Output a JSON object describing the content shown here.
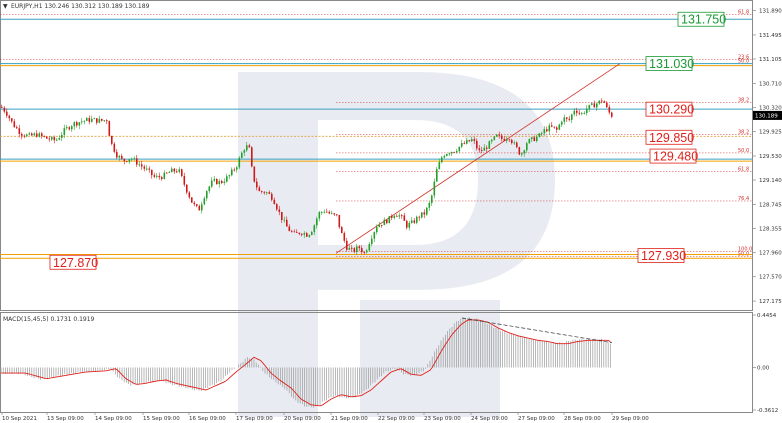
{
  "chart_data": [
    {
      "type": "candlestick",
      "header": "EURJPY,H1  130.246 130.312 130.189 130.189",
      "symbol": "EURJPY",
      "timeframe": "H1",
      "ohlc_last": {
        "open": 130.246,
        "high": 130.312,
        "low": 130.189,
        "close": 130.189
      },
      "current_price": "130.189",
      "ylim": [
        127.03,
        132.03
      ],
      "y_ticks": [
        "131.890",
        "131.495",
        "131.105",
        "130.710",
        "130.320",
        "129.925",
        "129.530",
        "129.140",
        "128.745",
        "128.355",
        "127.960",
        "127.570",
        "127.175"
      ],
      "x_ticks": [
        "10 Sep 2021",
        "13 Sep 09:00",
        "14 Sep 09:00",
        "15 Sep 09:00",
        "16 Sep 09:00",
        "17 Sep 09:00",
        "20 Sep 09:00",
        "21 Sep 09:00",
        "22 Sep 09:00",
        "23 Sep 09:00",
        "24 Sep 09:00",
        "27 Sep 09:00",
        "28 Sep 09:00",
        "29 Sep 09:00"
      ],
      "path_points": [
        [
          0,
          130.33
        ],
        [
          5,
          130.25
        ],
        [
          12,
          130.05
        ],
        [
          20,
          129.9
        ],
        [
          28,
          129.85
        ],
        [
          36,
          129.88
        ],
        [
          45,
          129.82
        ],
        [
          55,
          129.78
        ],
        [
          64,
          129.95
        ],
        [
          72,
          130.05
        ],
        [
          82,
          130.1
        ],
        [
          90,
          130.12
        ],
        [
          100,
          130.1
        ],
        [
          106,
          130.12
        ],
        [
          110,
          129.75
        ],
        [
          116,
          129.55
        ],
        [
          122,
          129.45
        ],
        [
          130,
          129.5
        ],
        [
          138,
          129.4
        ],
        [
          146,
          129.3
        ],
        [
          154,
          129.18
        ],
        [
          162,
          129.2
        ],
        [
          170,
          129.28
        ],
        [
          178,
          129.3
        ],
        [
          184,
          129.05
        ],
        [
          192,
          128.75
        ],
        [
          198,
          128.65
        ],
        [
          205,
          128.95
        ],
        [
          212,
          129.12
        ],
        [
          220,
          129.1
        ],
        [
          228,
          129.2
        ],
        [
          236,
          129.38
        ],
        [
          243,
          129.65
        ],
        [
          248,
          129.7
        ],
        [
          252,
          129.2
        ],
        [
          258,
          128.95
        ],
        [
          265,
          128.95
        ],
        [
          272,
          128.85
        ],
        [
          280,
          128.55
        ],
        [
          287,
          128.35
        ],
        [
          294,
          128.25
        ],
        [
          300,
          128.3
        ],
        [
          307,
          128.25
        ],
        [
          312,
          128.35
        ],
        [
          318,
          128.6
        ],
        [
          324,
          128.65
        ],
        [
          330,
          128.58
        ],
        [
          336,
          128.55
        ],
        [
          340,
          128.3
        ],
        [
          346,
          128.05
        ],
        [
          352,
          127.98
        ],
        [
          358,
          128.05
        ],
        [
          364,
          127.95
        ],
        [
          370,
          128.2
        ],
        [
          376,
          128.4
        ],
        [
          382,
          128.45
        ],
        [
          388,
          128.5
        ],
        [
          394,
          128.6
        ],
        [
          400,
          128.55
        ],
        [
          406,
          128.4
        ],
        [
          412,
          128.45
        ],
        [
          418,
          128.55
        ],
        [
          424,
          128.6
        ],
        [
          430,
          128.8
        ],
        [
          436,
          129.3
        ],
        [
          442,
          129.55
        ],
        [
          448,
          129.6
        ],
        [
          454,
          129.62
        ],
        [
          460,
          129.7
        ],
        [
          466,
          129.75
        ],
        [
          472,
          129.8
        ],
        [
          478,
          129.6
        ],
        [
          484,
          129.65
        ],
        [
          490,
          129.75
        ],
        [
          496,
          129.85
        ],
        [
          502,
          129.8
        ],
        [
          508,
          129.85
        ],
        [
          514,
          129.7
        ],
        [
          520,
          129.55
        ],
        [
          526,
          129.75
        ],
        [
          532,
          129.8
        ],
        [
          538,
          129.85
        ],
        [
          544,
          129.95
        ],
        [
          550,
          130.0
        ],
        [
          556,
          129.95
        ],
        [
          562,
          130.15
        ],
        [
          568,
          130.1
        ],
        [
          574,
          130.3
        ],
        [
          580,
          130.2
        ],
        [
          586,
          130.3
        ],
        [
          592,
          130.35
        ],
        [
          598,
          130.4
        ],
        [
          602,
          130.45
        ],
        [
          606,
          130.3
        ],
        [
          610,
          130.19
        ]
      ],
      "fib_retracements": [
        {
          "label": "61.8",
          "price": 131.83,
          "color": "#d0302a"
        },
        {
          "label": "23.6",
          "price": 131.1,
          "color": "#d0302a"
        },
        {
          "label": "50.0",
          "price": 131.03,
          "color": "#555555"
        },
        {
          "label": "38.2",
          "price": 130.4,
          "color": "#d0302a"
        },
        {
          "label": "38.2",
          "price": 129.88,
          "color": "#d0302a"
        },
        {
          "label": "50.0",
          "price": 129.58,
          "color": "#d0302a"
        },
        {
          "label": "61.8",
          "price": 129.28,
          "color": "#d0302a"
        },
        {
          "label": "76.4",
          "price": 128.8,
          "color": "#d0302a"
        },
        {
          "label": "100.0",
          "price": 127.98,
          "color": "#d0302a"
        },
        {
          "label": "50.0",
          "price": 127.9,
          "color": "#d0302a"
        }
      ],
      "levels": [
        {
          "label": "131.750",
          "price": 131.75,
          "color": "#1a9a33",
          "kind": "blue-line"
        },
        {
          "label": "131.030",
          "price": 131.03,
          "color": "#1a9a33",
          "kind": "blue-line"
        },
        {
          "label": "130.290",
          "price": 130.29,
          "color": "#e0201a",
          "kind": "blue-line"
        },
        {
          "label": "129.850",
          "price": 129.85,
          "color": "#e0201a",
          "kind": "dotted"
        },
        {
          "label": "129.480",
          "price": 129.48,
          "color": "#e0201a",
          "kind": "blue-line"
        },
        {
          "label": "127.930",
          "price": 127.93,
          "color": "#e0201a",
          "kind": "orange-line"
        },
        {
          "label": "127.870",
          "price": 127.87,
          "color": "#e0201a",
          "kind": "orange-line"
        }
      ],
      "trend_line": {
        "from": [
          336,
          127.95
        ],
        "to": [
          620,
          131.03
        ],
        "color": "#d0302a"
      }
    },
    {
      "type": "bar",
      "title": "MACD(15,45,5) 0.1731 0.1919",
      "ylim": [
        -0.3612,
        0.4454
      ],
      "y_ticks": [
        "0.4454",
        "0.00",
        "-0.3612"
      ],
      "bar_color": "#999999",
      "signal_color": "#e0201a",
      "divergence_line": {
        "from": [
          462,
          0.42
        ],
        "to": [
          612,
          0.21
        ]
      },
      "histogram_points": [
        [
          0,
          -0.05
        ],
        [
          20,
          -0.05
        ],
        [
          40,
          -0.1
        ],
        [
          60,
          -0.07
        ],
        [
          80,
          -0.04
        ],
        [
          100,
          -0.03
        ],
        [
          110,
          -0.01
        ],
        [
          120,
          -0.1
        ],
        [
          130,
          -0.15
        ],
        [
          140,
          -0.14
        ],
        [
          150,
          -0.12
        ],
        [
          160,
          -0.11
        ],
        [
          170,
          -0.14
        ],
        [
          180,
          -0.16
        ],
        [
          190,
          -0.18
        ],
        [
          200,
          -0.2
        ],
        [
          210,
          -0.16
        ],
        [
          220,
          -0.12
        ],
        [
          230,
          -0.04
        ],
        [
          240,
          0.03
        ],
        [
          248,
          0.09
        ],
        [
          255,
          0.06
        ],
        [
          265,
          -0.05
        ],
        [
          275,
          -0.12
        ],
        [
          285,
          -0.18
        ],
        [
          295,
          -0.28
        ],
        [
          305,
          -0.33
        ],
        [
          315,
          -0.34
        ],
        [
          325,
          -0.28
        ],
        [
          335,
          -0.24
        ],
        [
          345,
          -0.26
        ],
        [
          355,
          -0.25
        ],
        [
          365,
          -0.2
        ],
        [
          375,
          -0.12
        ],
        [
          385,
          -0.04
        ],
        [
          395,
          -0.01
        ],
        [
          405,
          -0.06
        ],
        [
          415,
          -0.07
        ],
        [
          425,
          -0.02
        ],
        [
          435,
          0.14
        ],
        [
          445,
          0.28
        ],
        [
          455,
          0.38
        ],
        [
          462,
          0.42
        ],
        [
          472,
          0.42
        ],
        [
          482,
          0.4
        ],
        [
          492,
          0.35
        ],
        [
          502,
          0.31
        ],
        [
          512,
          0.28
        ],
        [
          522,
          0.26
        ],
        [
          532,
          0.24
        ],
        [
          542,
          0.23
        ],
        [
          552,
          0.21
        ],
        [
          562,
          0.21
        ],
        [
          572,
          0.23
        ],
        [
          582,
          0.24
        ],
        [
          592,
          0.24
        ],
        [
          602,
          0.24
        ],
        [
          612,
          0.19
        ]
      ]
    }
  ]
}
